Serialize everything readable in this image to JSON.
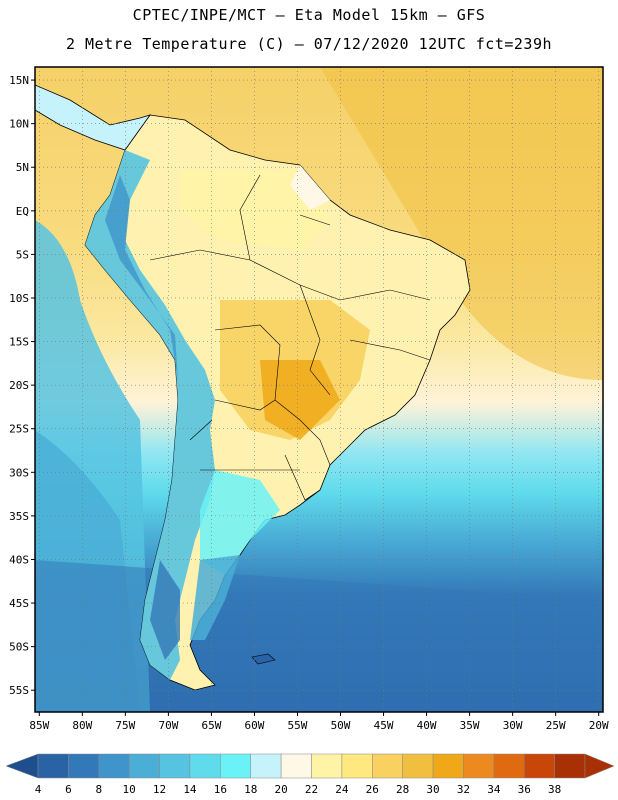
{
  "header": {
    "line1": "CPTEC/INPE/MCT –  Eta Model 15km – GFS",
    "line2": "2 Metre Temperature (C) – 07/12/2020 12UTC fct=239h"
  },
  "map": {
    "lat_labels": [
      "15N",
      "10N",
      "5N",
      "EQ",
      "5S",
      "10S",
      "15S",
      "20S",
      "25S",
      "30S",
      "35S",
      "40S",
      "45S",
      "50S",
      "55S"
    ],
    "lat_values": [
      15,
      10,
      5,
      0,
      -5,
      -10,
      -15,
      -20,
      -25,
      -30,
      -35,
      -40,
      -45,
      -50,
      -55
    ],
    "lon_labels": [
      "85W",
      "80W",
      "75W",
      "70W",
      "65W",
      "60W",
      "55W",
      "50W",
      "45W",
      "40W",
      "35W",
      "30W",
      "25W",
      "20W"
    ],
    "lon_values": [
      -85,
      -80,
      -75,
      -70,
      -65,
      -60,
      -55,
      -50,
      -45,
      -40,
      -35,
      -30,
      -25,
      -20
    ],
    "extent": {
      "lon_min": -85.5,
      "lon_max": -19.5,
      "lat_min": -57.5,
      "lat_max": 16.5
    }
  },
  "colorbar": {
    "labels": [
      "4",
      "6",
      "8",
      "10",
      "12",
      "14",
      "16",
      "18",
      "20",
      "22",
      "24",
      "26",
      "28",
      "30",
      "32",
      "34",
      "36",
      "38"
    ],
    "colors": [
      "#2a62a6",
      "#3378b8",
      "#3f95c9",
      "#4aaed6",
      "#56c3e0",
      "#5fdbeb",
      "#6bf2f7",
      "#c6f2fb",
      "#fff8e6",
      "#fff4a6",
      "#ffe880",
      "#f8d160",
      "#f0bf40",
      "#f0a818",
      "#ec8a20",
      "#e06a10",
      "#c84608",
      "#a83004"
    ],
    "under_color": "#1e4f8c",
    "over_color": "#a83004"
  }
}
